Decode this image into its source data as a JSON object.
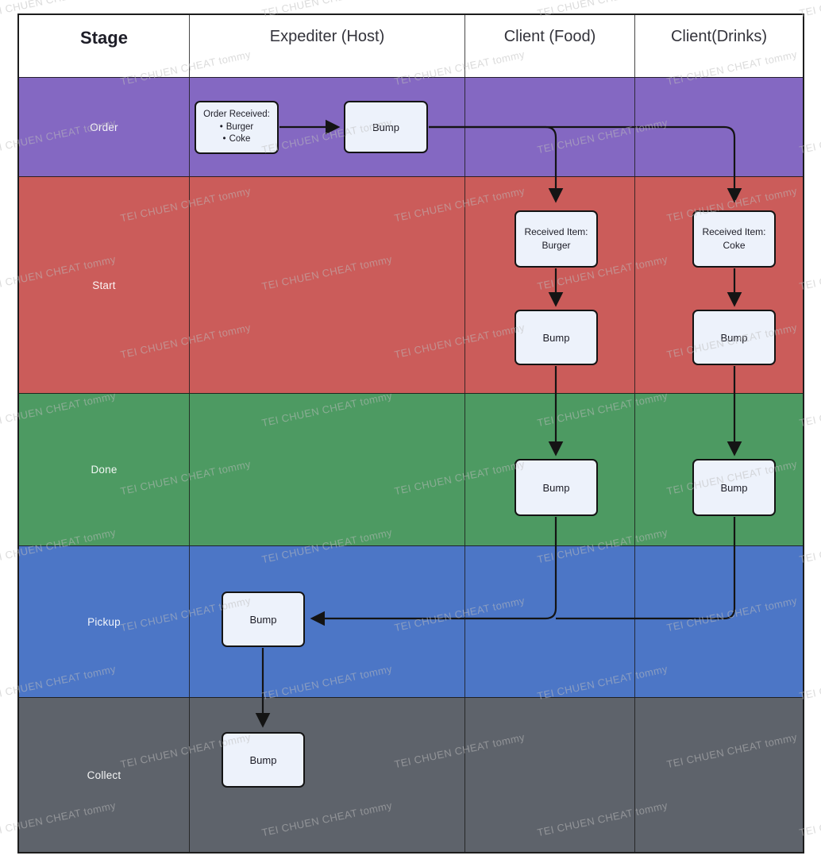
{
  "header": {
    "columns": [
      "Stage",
      "Expediter (Host)",
      "Client (Food)",
      "Client(Drinks)"
    ]
  },
  "stages": [
    {
      "label": "Order",
      "color": "#8468C2"
    },
    {
      "label": "Start",
      "color": "#CB5C5A"
    },
    {
      "label": "Done",
      "color": "#4D9A62"
    },
    {
      "label": "Pickup",
      "color": "#4C76C6"
    },
    {
      "label": "Collect",
      "color": "#5E636B"
    }
  ],
  "nodes": {
    "order_received": {
      "title": "Order Received:",
      "items": [
        "Burger",
        "Coke"
      ]
    },
    "bump_order": {
      "label": "Bump"
    },
    "received_burger": {
      "line1": "Received Item:",
      "line2": "Burger"
    },
    "received_coke": {
      "line1": "Received Item:",
      "line2": "Coke"
    },
    "bump_start_food": {
      "label": "Bump"
    },
    "bump_start_drinks": {
      "label": "Bump"
    },
    "bump_done_food": {
      "label": "Bump"
    },
    "bump_done_drinks": {
      "label": "Bump"
    },
    "bump_pickup": {
      "label": "Bump"
    },
    "bump_collect": {
      "label": "Bump"
    }
  },
  "watermark": {
    "text": "TEI CHUEN CHEAT tommy"
  },
  "colors": {
    "node_fill": "#EDF2FB",
    "node_border": "#141414",
    "arrow": "#141414",
    "grid_line": "#1D1D1D",
    "header_text": "#33333B",
    "stage_text": "#FFFFFF"
  }
}
